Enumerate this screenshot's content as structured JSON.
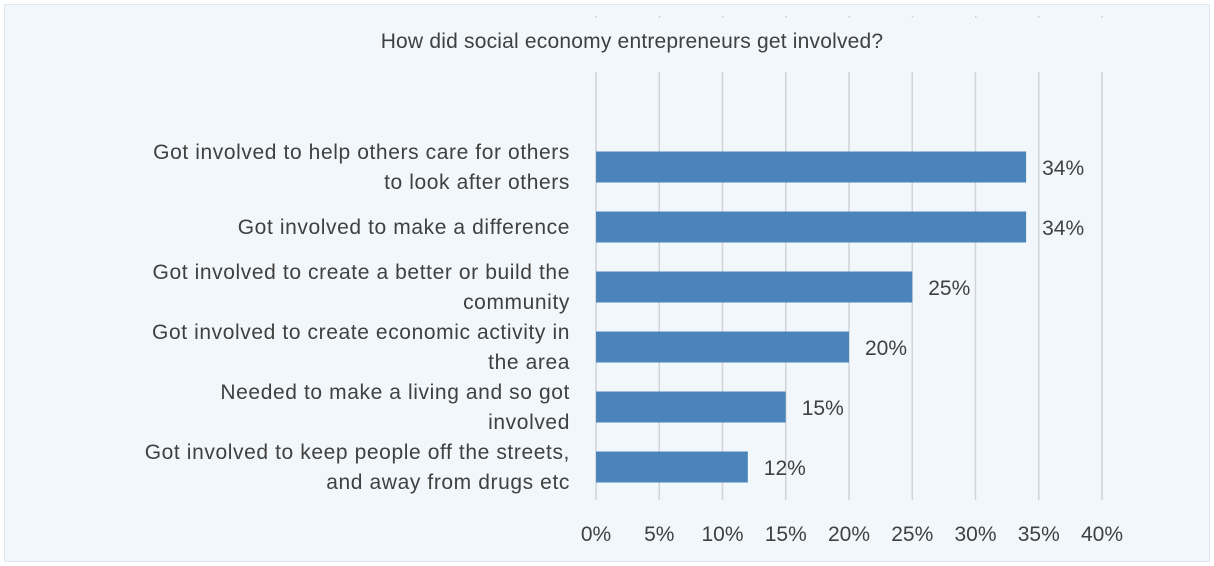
{
  "chart_data": {
    "type": "bar",
    "orientation": "horizontal",
    "title": "How did social economy entrepreneurs get involved?",
    "categories": [
      [
        "Got involved to help others care for others",
        "to look after others"
      ],
      [
        "Got involved to make a difference"
      ],
      [
        "Got involved to create a better or build the",
        "community"
      ],
      [
        "Got involved to create economic activity in",
        "the area"
      ],
      [
        "Needed to make a living and so got",
        "involved"
      ],
      [
        "Got involved to keep people off the streets,",
        "and away from drugs etc"
      ]
    ],
    "values": [
      34,
      34,
      25,
      20,
      15,
      12
    ],
    "data_labels": [
      "34%",
      "34%",
      "25%",
      "20%",
      "15%",
      "12%"
    ],
    "xlim": [
      0,
      40
    ],
    "ticks": [
      0,
      5,
      10,
      15,
      20,
      25,
      30,
      35,
      40
    ],
    "tick_labels": [
      "0%",
      "5%",
      "10%",
      "15%",
      "20%",
      "25%",
      "30%",
      "35%",
      "40%"
    ],
    "grid": true,
    "legend": "none",
    "bar_color": "#4a84bb",
    "background_color": "#f2f7fb"
  }
}
